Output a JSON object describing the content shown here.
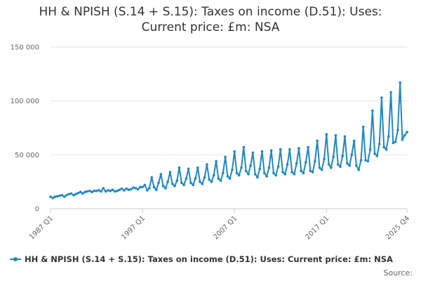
{
  "chart_data": {
    "type": "line",
    "title_lines": [
      "HH & NPISH (S.14 + S.15): Taxes on income (D.51): Uses:",
      "Current price: £m: NSA"
    ],
    "x_tick_labels": [
      "1987 Q1",
      "1997 Q1",
      "2007 Q1",
      "2017 Q1",
      "2025 Q4"
    ],
    "x_start": {
      "year": 1987,
      "quarter": 1
    },
    "x_end": {
      "year": 2025,
      "quarter": 4
    },
    "y_tick_labels": [
      "0",
      "50 000",
      "100 000",
      "150 000"
    ],
    "y_ticks": [
      0,
      50000,
      100000,
      150000
    ],
    "ylim": [
      0,
      150000
    ],
    "grid": true,
    "legend_position": "bottom-left",
    "series": [
      {
        "name": "HH & NPISH (S.14 + S.15): Taxes on income (D.51): Uses: Current price: £m: NSA",
        "color": "#1f88c4",
        "years": [
          [
            11000,
            10000,
            11000,
            11500
          ],
          [
            12000,
            12500,
            11000,
            12500
          ],
          [
            13500,
            14000,
            12500,
            13500
          ],
          [
            14500,
            15500,
            14000,
            15500
          ],
          [
            16000,
            16500,
            15500,
            16500
          ],
          [
            16500,
            17000,
            16000,
            19000
          ],
          [
            16000,
            17000,
            16500,
            17500
          ],
          [
            16000,
            16500,
            17500,
            18500
          ],
          [
            17000,
            18500,
            17500,
            18000
          ],
          [
            19500,
            19000,
            18000,
            20000
          ],
          [
            20000,
            22000,
            17000,
            19000
          ],
          [
            29000,
            20000,
            17500,
            24000
          ],
          [
            32000,
            21000,
            19000,
            25000
          ],
          [
            34000,
            23000,
            21000,
            26000
          ],
          [
            38000,
            24000,
            22000,
            28000
          ],
          [
            37000,
            24000,
            22000,
            28000
          ],
          [
            38000,
            25000,
            23000,
            29000
          ],
          [
            41000,
            27000,
            25000,
            31000
          ],
          [
            44000,
            28000,
            26000,
            33000
          ],
          [
            48000,
            30000,
            28000,
            36000
          ],
          [
            53000,
            33000,
            31000,
            38000
          ],
          [
            57000,
            35000,
            32000,
            40000
          ],
          [
            52000,
            32000,
            29000,
            37000
          ],
          [
            53000,
            33000,
            30000,
            38000
          ],
          [
            54000,
            33000,
            31000,
            39000
          ],
          [
            55000,
            34000,
            32000,
            41000
          ],
          [
            55000,
            34000,
            32000,
            42000
          ],
          [
            56000,
            35000,
            33000,
            43000
          ],
          [
            57000,
            35000,
            34000,
            44000
          ],
          [
            63000,
            38000,
            36000,
            46000
          ],
          [
            69000,
            41000,
            38000,
            48000
          ],
          [
            68000,
            41000,
            39000,
            49000
          ],
          [
            67000,
            42000,
            40000,
            50000
          ],
          [
            63000,
            40000,
            36000,
            45000
          ],
          [
            76000,
            45000,
            44000,
            55000
          ],
          [
            91000,
            51000,
            49000,
            60000
          ],
          [
            103000,
            57000,
            55000,
            67000
          ],
          [
            108000,
            61000,
            62000,
            73000
          ],
          [
            117000,
            64000,
            68000,
            71000
          ]
        ]
      }
    ]
  }
}
